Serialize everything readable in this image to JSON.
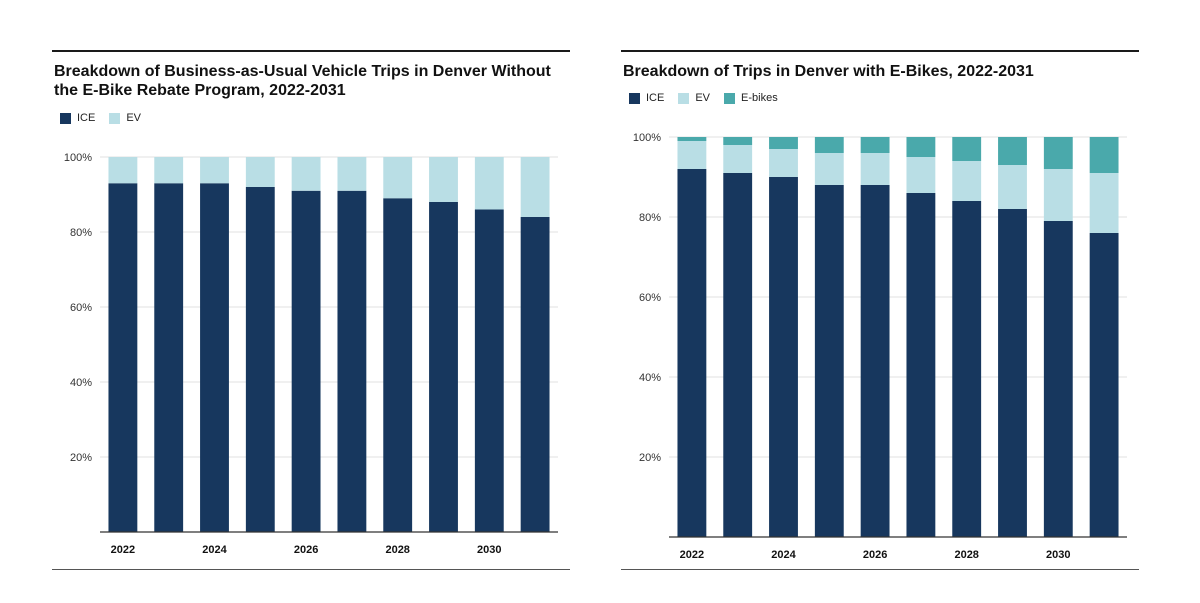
{
  "colors": {
    "ICE": "#17375e",
    "EV": "#b9dee5",
    "E-bikes": "#4aa9ab",
    "grid": "#e2e2e2",
    "axis": "#333333"
  },
  "chart_data": [
    {
      "type": "bar",
      "stacked": true,
      "title": "Breakdown of Business-as-Usual Vehicle Trips in Denver Without the E-Bike Rebate Program, 2022-2031",
      "xlabel": "",
      "ylabel": "",
      "categories": [
        "2022",
        "2023",
        "2024",
        "2025",
        "2026",
        "2027",
        "2028",
        "2029",
        "2030",
        "2031"
      ],
      "x_tick_labels": [
        "2022",
        "",
        "2024",
        "",
        "2026",
        "",
        "2028",
        "",
        "2030",
        ""
      ],
      "series": [
        {
          "name": "ICE",
          "values": [
            93,
            93,
            93,
            92,
            91,
            91,
            89,
            88,
            86,
            84
          ]
        },
        {
          "name": "EV",
          "values": [
            7,
            7,
            7,
            8,
            9,
            9,
            11,
            12,
            14,
            16
          ]
        }
      ],
      "ylim": [
        0,
        100
      ],
      "y_ticks": [
        20,
        40,
        60,
        80,
        100
      ],
      "y_tick_labels": [
        "20%",
        "40%",
        "60%",
        "80%",
        "100%"
      ],
      "grid": true,
      "legend_position": "top-left"
    },
    {
      "type": "bar",
      "stacked": true,
      "title": "Breakdown of Trips in Denver with E-Bikes, 2022-2031",
      "xlabel": "",
      "ylabel": "",
      "categories": [
        "2022",
        "2023",
        "2024",
        "2025",
        "2026",
        "2027",
        "2028",
        "2029",
        "2030",
        "2031"
      ],
      "x_tick_labels": [
        "2022",
        "",
        "2024",
        "",
        "2026",
        "",
        "2028",
        "",
        "2030",
        ""
      ],
      "series": [
        {
          "name": "ICE",
          "values": [
            92,
            91,
            90,
            88,
            88,
            86,
            84,
            82,
            79,
            76
          ]
        },
        {
          "name": "EV",
          "values": [
            7,
            7,
            7,
            8,
            8,
            9,
            10,
            11,
            13,
            15
          ]
        },
        {
          "name": "E-bikes",
          "values": [
            1,
            2,
            3,
            4,
            4,
            5,
            6,
            7,
            8,
            9
          ]
        }
      ],
      "ylim": [
        0,
        100
      ],
      "y_ticks": [
        20,
        40,
        60,
        80,
        100
      ],
      "y_tick_labels": [
        "20%",
        "40%",
        "60%",
        "80%",
        "100%"
      ],
      "grid": true,
      "legend_position": "top-left"
    }
  ]
}
